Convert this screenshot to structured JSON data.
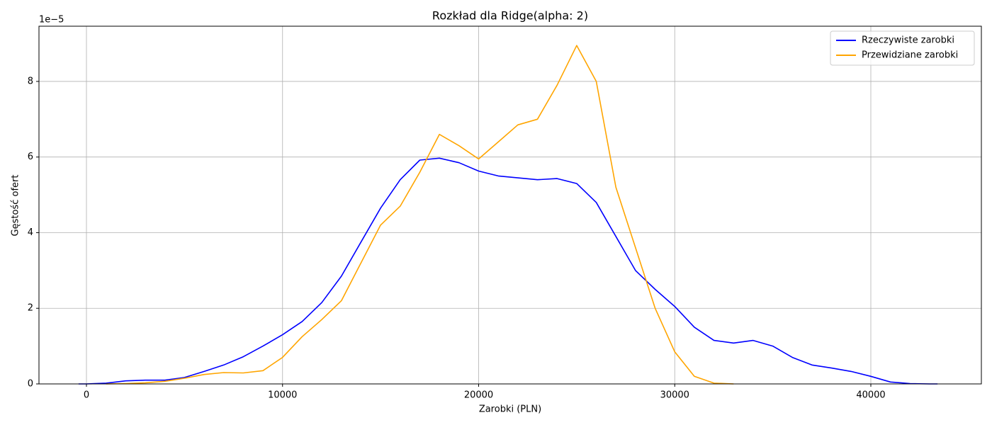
{
  "chart_data": {
    "type": "line",
    "title": "Rozkład dla Ridge(alpha: 2)",
    "x_label": "Zarobki (PLN)",
    "y_label": "Gęstość ofert",
    "y_offset_label": "1e−5",
    "x": [
      -400,
      0,
      1000,
      2000,
      3000,
      4000,
      5000,
      6000,
      7000,
      8000,
      9000,
      10000,
      11000,
      12000,
      13000,
      14000,
      15000,
      16000,
      17000,
      18000,
      19000,
      20000,
      21000,
      22000,
      23000,
      24000,
      25000,
      26000,
      27000,
      28000,
      29000,
      30000,
      31000,
      32000,
      33000,
      34000,
      35000,
      36000,
      37000,
      38000,
      39000,
      40000,
      41000,
      42000,
      43000,
      43400
    ],
    "series": [
      {
        "name": "Rzeczywiste zarobki",
        "color": "#0000ff",
        "values": [
          0,
          0,
          0.02,
          0.08,
          0.1,
          0.1,
          0.17,
          0.33,
          0.5,
          0.72,
          1.0,
          1.3,
          1.65,
          2.15,
          2.85,
          3.75,
          4.65,
          5.4,
          5.92,
          5.97,
          5.85,
          5.63,
          5.5,
          5.45,
          5.4,
          5.43,
          5.3,
          4.8,
          3.9,
          3.0,
          2.5,
          2.05,
          1.5,
          1.15,
          1.08,
          1.15,
          1.0,
          0.7,
          0.5,
          0.42,
          0.33,
          0.2,
          0.05,
          0.01,
          0,
          0
        ]
      },
      {
        "name": "Przewidziane zarobki",
        "color": "#ffa500",
        "values": [
          null,
          null,
          0,
          0.01,
          0.03,
          0.07,
          0.15,
          0.25,
          0.3,
          0.29,
          0.35,
          0.7,
          1.25,
          1.7,
          2.2,
          3.2,
          4.2,
          4.7,
          5.6,
          6.6,
          6.3,
          5.95,
          6.4,
          6.85,
          7.0,
          7.9,
          8.95,
          8.0,
          5.2,
          3.6,
          2.0,
          0.85,
          0.2,
          0.02,
          0,
          null,
          null,
          null,
          null,
          null,
          null,
          null,
          null,
          null,
          null,
          null
        ]
      }
    ],
    "xlim": [
      -2421,
      45637
    ],
    "ylim": [
      0,
      9.46
    ],
    "xticks": [
      0,
      10000,
      20000,
      30000,
      40000
    ],
    "yticks": [
      0,
      2,
      4,
      6,
      8
    ],
    "grid": true,
    "legend": "upper right"
  }
}
